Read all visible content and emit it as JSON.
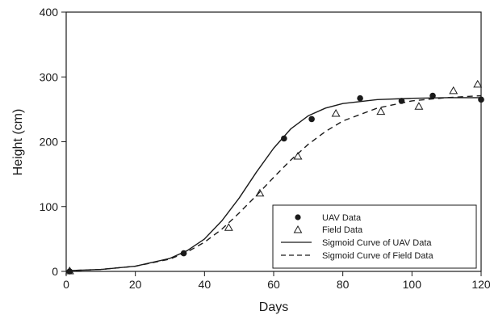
{
  "chart_data": {
    "type": "scatter",
    "title": "",
    "xlabel": "Days",
    "ylabel": "Height (cm)",
    "xlim": [
      0,
      120
    ],
    "ylim": [
      0,
      400
    ],
    "xticks": [
      0,
      20,
      40,
      60,
      80,
      100,
      120
    ],
    "yticks": [
      0,
      100,
      200,
      300,
      400
    ],
    "grid": false,
    "legend": {
      "position": "bottom-right"
    },
    "series": [
      {
        "name": "UAV Data",
        "kind": "points",
        "marker": "filled-circle",
        "points": [
          [
            1,
            0
          ],
          [
            34,
            28
          ],
          [
            63,
            205
          ],
          [
            71,
            235
          ],
          [
            85,
            267
          ],
          [
            97,
            263
          ],
          [
            106,
            271
          ],
          [
            120,
            265
          ]
        ]
      },
      {
        "name": "Field Data",
        "kind": "points",
        "marker": "open-triangle",
        "points": [
          [
            1,
            0
          ],
          [
            47,
            67
          ],
          [
            56,
            120
          ],
          [
            67,
            177
          ],
          [
            78,
            243
          ],
          [
            91,
            246
          ],
          [
            102,
            254
          ],
          [
            112,
            278
          ],
          [
            119,
            288
          ]
        ]
      },
      {
        "name": "Sigmoid Curve of UAV Data",
        "kind": "line",
        "dash": "solid",
        "x": [
          0,
          10,
          20,
          30,
          35,
          40,
          45,
          50,
          55,
          60,
          65,
          70,
          75,
          80,
          90,
          100,
          110,
          120
        ],
        "y": [
          1,
          3,
          8,
          20,
          32,
          50,
          78,
          113,
          153,
          190,
          220,
          240,
          252,
          259,
          265,
          267,
          268,
          268
        ]
      },
      {
        "name": "Sigmoid Curve of Field Data",
        "kind": "line",
        "dash": "dashed",
        "x": [
          0,
          10,
          20,
          30,
          35,
          40,
          45,
          50,
          55,
          60,
          65,
          70,
          75,
          80,
          90,
          100,
          110,
          120
        ],
        "y": [
          1,
          3,
          8,
          19,
          30,
          45,
          65,
          90,
          117,
          145,
          172,
          196,
          216,
          232,
          252,
          263,
          268,
          271
        ]
      }
    ]
  }
}
